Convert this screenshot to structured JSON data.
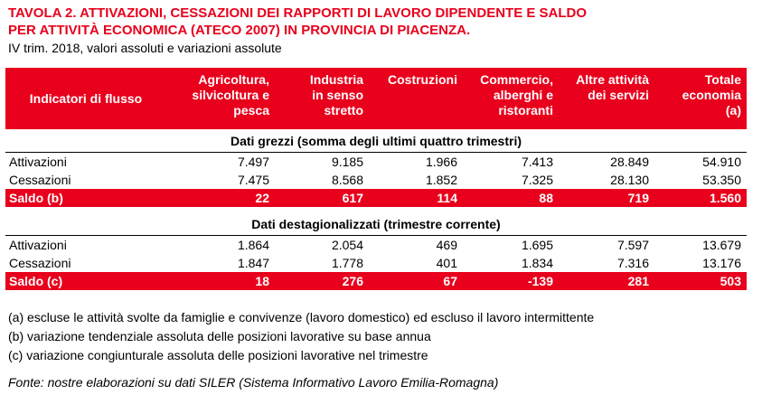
{
  "title_line1": "TAVOLA 2. ATTIVAZIONI, CESSAZIONI DEI RAPPORTI DI LAVORO DIPENDENTE E SALDO",
  "title_line2": "PER ATTIVITÀ ECONOMICA (ATECO 2007) IN PROVINCIA DI PIACENZA.",
  "subtitle": "IV trim. 2018, valori assoluti e variazioni assolute",
  "headers": [
    "Indicatori di flusso",
    "Agricoltura,\nsilvicoltura e\npesca",
    "Industria\nin senso\nstretto",
    "Costruzioni",
    "Commercio,\nalberghi e\nristoranti",
    "Altre attività\ndei servizi",
    "Totale\neconomia\n(a)"
  ],
  "sections": [
    {
      "title": "Dati grezzi (somma degli ultimi quattro trimestri)",
      "rows": [
        [
          "Attivazioni",
          "7.497",
          "9.185",
          "1.966",
          "7.413",
          "28.849",
          "54.910"
        ],
        [
          "Cessazioni",
          "7.475",
          "8.568",
          "1.852",
          "7.325",
          "28.130",
          "53.350"
        ]
      ],
      "saldo": [
        "Saldo (b)",
        "22",
        "617",
        "114",
        "88",
        "719",
        "1.560"
      ]
    },
    {
      "title": "Dati destagionalizzati (trimestre corrente)",
      "rows": [
        [
          "Attivazioni",
          "1.864",
          "2.054",
          "469",
          "1.695",
          "7.597",
          "13.679"
        ],
        [
          "Cessazioni",
          "1.847",
          "1.778",
          "401",
          "1.834",
          "7.316",
          "13.176"
        ]
      ],
      "saldo": [
        "Saldo (c)",
        "18",
        "276",
        "67",
        "-139",
        "281",
        "503"
      ]
    }
  ],
  "notes": [
    "(a) escluse le attività svolte da famiglie e convivenze (lavoro domestico) ed escluso il lavoro intermittente",
    "(b) variazione tendenziale assoluta delle posizioni lavorative su base annua",
    "(c) variazione congiunturale assoluta delle posizioni lavorative nel trimestre"
  ],
  "source": "Fonte: nostre elaborazioni su dati SILER (Sistema Informativo Lavoro Emilia-Romagna)",
  "colors": {
    "accent": "#e8001c",
    "header_text": "#ffffff"
  }
}
